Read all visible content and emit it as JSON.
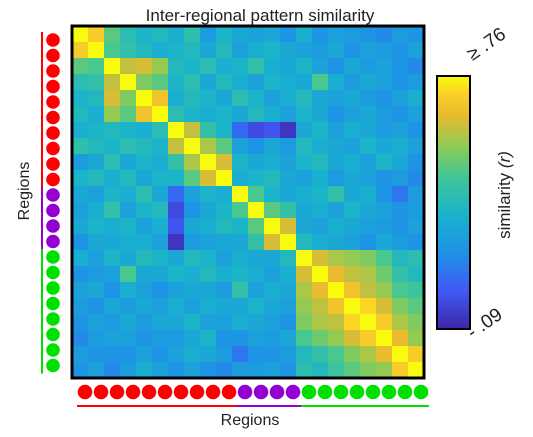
{
  "chart_data": {
    "type": "heatmap",
    "title": "Inter-regional pattern similarity",
    "xlabel": "Regions",
    "ylabel": "Regions",
    "colorbar": {
      "label_text": "similarity ",
      "label_symbol": "(r)",
      "max_label": "≥ .76",
      "min_label": "- .09",
      "vmin": 0.09,
      "vmax": 0.76,
      "colormap": "parula"
    },
    "region_groups": [
      {
        "color": "#ff0000",
        "count": 10
      },
      {
        "color": "#9400d3",
        "count": 4
      },
      {
        "color": "#00e000",
        "count": 8
      }
    ],
    "matrix": [
      [
        0.76,
        0.7,
        0.52,
        0.44,
        0.4,
        0.42,
        0.38,
        0.45,
        0.32,
        0.4,
        0.36,
        0.34,
        0.36,
        0.3,
        0.38,
        0.3,
        0.34,
        0.32,
        0.3,
        0.28,
        0.32,
        0.3
      ],
      [
        0.7,
        0.76,
        0.5,
        0.46,
        0.42,
        0.38,
        0.4,
        0.42,
        0.36,
        0.42,
        0.34,
        0.38,
        0.4,
        0.36,
        0.34,
        0.32,
        0.36,
        0.3,
        0.34,
        0.32,
        0.3,
        0.34
      ],
      [
        0.52,
        0.5,
        0.76,
        0.62,
        0.64,
        0.58,
        0.42,
        0.4,
        0.44,
        0.38,
        0.4,
        0.46,
        0.38,
        0.36,
        0.4,
        0.34,
        0.3,
        0.36,
        0.32,
        0.34,
        0.3,
        0.28
      ],
      [
        0.44,
        0.46,
        0.62,
        0.76,
        0.56,
        0.52,
        0.4,
        0.44,
        0.36,
        0.42,
        0.38,
        0.34,
        0.4,
        0.38,
        0.36,
        0.5,
        0.38,
        0.32,
        0.36,
        0.34,
        0.3,
        0.32
      ],
      [
        0.4,
        0.42,
        0.64,
        0.56,
        0.76,
        0.68,
        0.38,
        0.42,
        0.4,
        0.36,
        0.44,
        0.4,
        0.34,
        0.38,
        0.42,
        0.36,
        0.34,
        0.36,
        0.32,
        0.3,
        0.34,
        0.38
      ],
      [
        0.42,
        0.38,
        0.58,
        0.52,
        0.68,
        0.76,
        0.44,
        0.4,
        0.38,
        0.4,
        0.36,
        0.42,
        0.38,
        0.34,
        0.4,
        0.36,
        0.3,
        0.34,
        0.36,
        0.32,
        0.3,
        0.34
      ],
      [
        0.38,
        0.4,
        0.42,
        0.4,
        0.38,
        0.44,
        0.76,
        0.62,
        0.46,
        0.4,
        0.22,
        0.16,
        0.18,
        0.12,
        0.36,
        0.4,
        0.34,
        0.38,
        0.36,
        0.32,
        0.34,
        0.3
      ],
      [
        0.45,
        0.42,
        0.4,
        0.44,
        0.42,
        0.4,
        0.62,
        0.76,
        0.6,
        0.52,
        0.34,
        0.3,
        0.36,
        0.32,
        0.42,
        0.38,
        0.36,
        0.34,
        0.4,
        0.36,
        0.38,
        0.34
      ],
      [
        0.32,
        0.36,
        0.44,
        0.36,
        0.4,
        0.38,
        0.46,
        0.6,
        0.76,
        0.64,
        0.4,
        0.36,
        0.38,
        0.34,
        0.4,
        0.42,
        0.36,
        0.38,
        0.34,
        0.4,
        0.36,
        0.3
      ],
      [
        0.4,
        0.42,
        0.38,
        0.42,
        0.36,
        0.4,
        0.4,
        0.52,
        0.64,
        0.76,
        0.38,
        0.4,
        0.42,
        0.36,
        0.34,
        0.38,
        0.32,
        0.36,
        0.34,
        0.3,
        0.32,
        0.28
      ],
      [
        0.36,
        0.34,
        0.4,
        0.38,
        0.44,
        0.36,
        0.22,
        0.34,
        0.4,
        0.38,
        0.76,
        0.5,
        0.4,
        0.36,
        0.38,
        0.4,
        0.46,
        0.36,
        0.38,
        0.3,
        0.24,
        0.32
      ],
      [
        0.34,
        0.38,
        0.46,
        0.34,
        0.4,
        0.42,
        0.16,
        0.3,
        0.36,
        0.4,
        0.5,
        0.76,
        0.52,
        0.46,
        0.36,
        0.38,
        0.34,
        0.4,
        0.36,
        0.34,
        0.3,
        0.32
      ],
      [
        0.36,
        0.4,
        0.38,
        0.4,
        0.34,
        0.38,
        0.18,
        0.36,
        0.38,
        0.42,
        0.4,
        0.52,
        0.76,
        0.64,
        0.36,
        0.34,
        0.38,
        0.36,
        0.34,
        0.32,
        0.3,
        0.34
      ],
      [
        0.3,
        0.36,
        0.36,
        0.38,
        0.38,
        0.34,
        0.12,
        0.32,
        0.34,
        0.36,
        0.36,
        0.46,
        0.64,
        0.76,
        0.42,
        0.38,
        0.36,
        0.34,
        0.3,
        0.36,
        0.32,
        0.3
      ],
      [
        0.38,
        0.34,
        0.4,
        0.36,
        0.42,
        0.4,
        0.36,
        0.42,
        0.4,
        0.34,
        0.38,
        0.36,
        0.36,
        0.42,
        0.76,
        0.64,
        0.6,
        0.58,
        0.56,
        0.5,
        0.42,
        0.44
      ],
      [
        0.3,
        0.32,
        0.34,
        0.5,
        0.36,
        0.36,
        0.4,
        0.38,
        0.42,
        0.38,
        0.4,
        0.38,
        0.34,
        0.38,
        0.64,
        0.76,
        0.66,
        0.62,
        0.6,
        0.54,
        0.46,
        0.42
      ],
      [
        0.34,
        0.36,
        0.3,
        0.38,
        0.34,
        0.3,
        0.34,
        0.36,
        0.36,
        0.32,
        0.46,
        0.34,
        0.38,
        0.36,
        0.6,
        0.66,
        0.76,
        0.68,
        0.62,
        0.58,
        0.5,
        0.48
      ],
      [
        0.32,
        0.3,
        0.36,
        0.32,
        0.36,
        0.34,
        0.38,
        0.34,
        0.38,
        0.36,
        0.36,
        0.4,
        0.36,
        0.34,
        0.58,
        0.62,
        0.68,
        0.76,
        0.72,
        0.64,
        0.56,
        0.52
      ],
      [
        0.3,
        0.34,
        0.32,
        0.36,
        0.32,
        0.36,
        0.36,
        0.4,
        0.34,
        0.34,
        0.38,
        0.36,
        0.34,
        0.3,
        0.56,
        0.6,
        0.62,
        0.72,
        0.76,
        0.7,
        0.6,
        0.56
      ],
      [
        0.28,
        0.32,
        0.34,
        0.34,
        0.3,
        0.32,
        0.32,
        0.36,
        0.4,
        0.3,
        0.3,
        0.34,
        0.32,
        0.36,
        0.5,
        0.54,
        0.58,
        0.64,
        0.7,
        0.76,
        0.66,
        0.58
      ],
      [
        0.32,
        0.3,
        0.3,
        0.3,
        0.34,
        0.3,
        0.34,
        0.38,
        0.36,
        0.32,
        0.24,
        0.3,
        0.3,
        0.32,
        0.42,
        0.46,
        0.5,
        0.56,
        0.6,
        0.66,
        0.76,
        0.7
      ],
      [
        0.3,
        0.34,
        0.28,
        0.32,
        0.38,
        0.34,
        0.3,
        0.34,
        0.3,
        0.28,
        0.32,
        0.32,
        0.34,
        0.3,
        0.44,
        0.42,
        0.48,
        0.52,
        0.56,
        0.58,
        0.7,
        0.76
      ]
    ]
  }
}
